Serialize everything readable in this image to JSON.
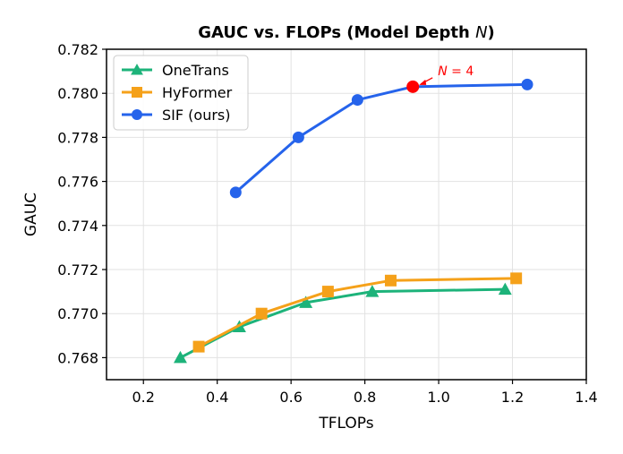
{
  "chart_data": {
    "type": "line",
    "title_parts": [
      "GAUC vs. FLOPs (Model Depth ",
      "N",
      ")"
    ],
    "xlabel": "TFLOPs",
    "ylabel": "GAUC",
    "xlim": [
      0.1,
      1.4
    ],
    "ylim": [
      0.767,
      0.782
    ],
    "xticks": [
      0.2,
      0.4,
      0.6,
      0.8,
      1.0,
      1.2,
      1.4
    ],
    "xtick_labels": [
      "0.2",
      "0.4",
      "0.6",
      "0.8",
      "1.0",
      "1.2",
      "1.4"
    ],
    "yticks": [
      0.768,
      0.77,
      0.772,
      0.774,
      0.776,
      0.778,
      0.78,
      0.782
    ],
    "ytick_labels": [
      "0.768",
      "0.770",
      "0.772",
      "0.774",
      "0.776",
      "0.778",
      "0.780",
      "0.782"
    ],
    "grid": true,
    "legend_position": "top-left",
    "series": [
      {
        "name": "OneTrans",
        "color": "#1db37a",
        "marker": "triangle",
        "x": [
          0.3,
          0.46,
          0.64,
          0.82,
          1.18
        ],
        "y": [
          0.768,
          0.7694,
          0.7705,
          0.771,
          0.7711
        ]
      },
      {
        "name": "HyFormer",
        "color": "#f5a11a",
        "marker": "square",
        "x": [
          0.35,
          0.52,
          0.7,
          0.87,
          1.21
        ],
        "y": [
          0.7685,
          0.77,
          0.771,
          0.7715,
          0.7716
        ]
      },
      {
        "name": "SIF (ours)",
        "color": "#2563eb",
        "marker": "circle",
        "x": [
          0.45,
          0.62,
          0.78,
          0.93,
          1.24
        ],
        "y": [
          0.7755,
          0.778,
          0.7797,
          0.7803,
          0.7804
        ]
      }
    ],
    "highlight": {
      "series": "SIF (ours)",
      "x": 0.93,
      "y": 0.7803,
      "color": "#ff0000",
      "label_var": "N",
      "label_rest": " = 4"
    }
  }
}
